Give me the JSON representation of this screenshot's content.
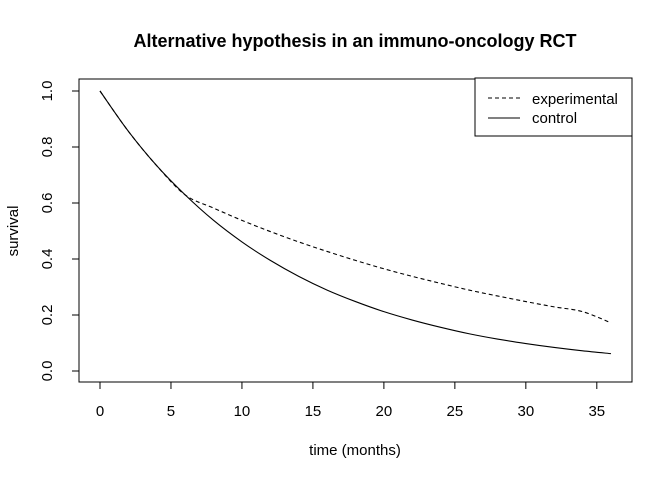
{
  "chart_data": {
    "type": "line",
    "title": "Alternative hypothesis in an immuno-oncology RCT",
    "xlabel": "time (months)",
    "ylabel": "survival",
    "xlim": [
      0,
      36
    ],
    "ylim": [
      0,
      1
    ],
    "x_ticks": [
      0,
      5,
      10,
      15,
      20,
      25,
      30,
      35
    ],
    "y_ticks": [
      0.0,
      0.2,
      0.4,
      0.6,
      0.8,
      1.0
    ],
    "x_tick_labels": [
      "0",
      "5",
      "10",
      "15",
      "20",
      "25",
      "30",
      "35"
    ],
    "y_tick_labels": [
      "0.0",
      "0.2",
      "0.4",
      "0.6",
      "0.8",
      "1.0"
    ],
    "grid": false,
    "legend_position": "top-right",
    "x": [
      0,
      2,
      4,
      6,
      8,
      10,
      12,
      14,
      16,
      18,
      20,
      22,
      24,
      26,
      28,
      30,
      32,
      34,
      36
    ],
    "series": [
      {
        "name": "experimental",
        "line_style": "dashed",
        "color": "#000000",
        "values": [
          1.0,
          0.856,
          0.733,
          0.629,
          0.582,
          0.538,
          0.498,
          0.461,
          0.427,
          0.395,
          0.365,
          0.338,
          0.313,
          0.289,
          0.268,
          0.248,
          0.229,
          0.212,
          0.172
        ]
      },
      {
        "name": "control",
        "line_style": "solid",
        "color": "#000000",
        "values": [
          1.0,
          0.856,
          0.733,
          0.629,
          0.538,
          0.461,
          0.395,
          0.338,
          0.289,
          0.248,
          0.212,
          0.182,
          0.156,
          0.133,
          0.114,
          0.098,
          0.084,
          0.072,
          0.062
        ]
      }
    ]
  }
}
